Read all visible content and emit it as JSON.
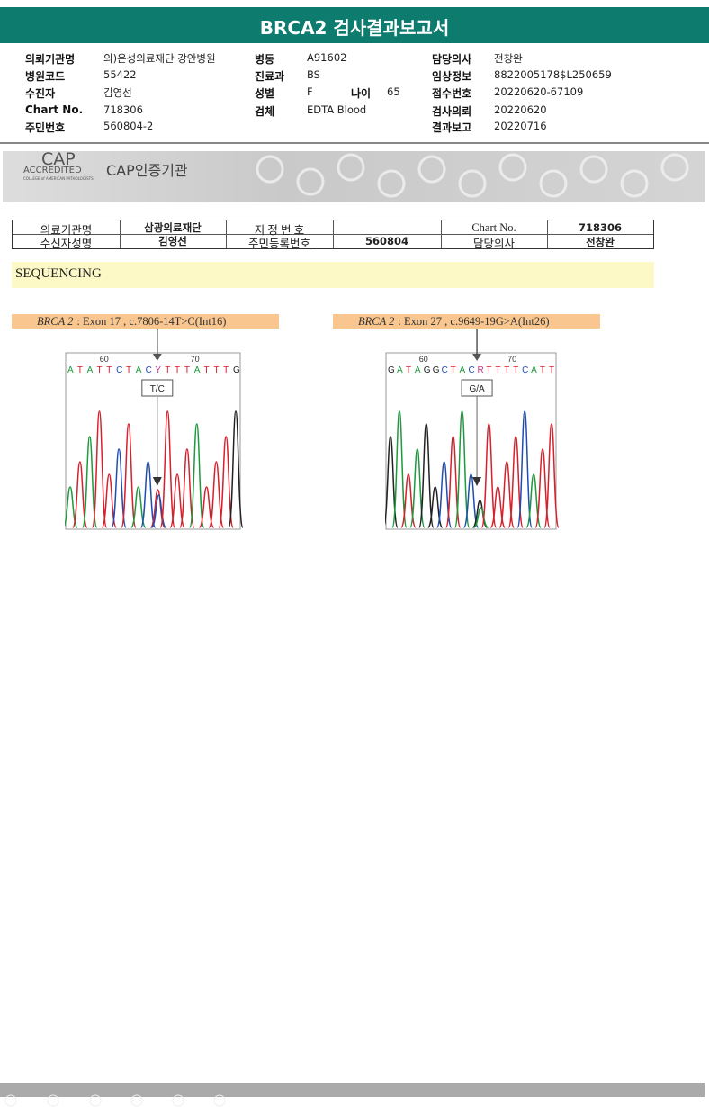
{
  "header": {
    "title": "BRCA2 검사결과보고서"
  },
  "patient_info": {
    "left": [
      {
        "label": "의뢰기관명",
        "value": "의)은성의료재단 강안병원"
      },
      {
        "label": "병원코드",
        "value": "55422"
      },
      {
        "label": "수진자",
        "value": "김영선"
      },
      {
        "label": "Chart No.",
        "value": "718306"
      },
      {
        "label": "주민번호",
        "value": "560804-2"
      }
    ],
    "middle": [
      {
        "label": "병동",
        "value": "A91602"
      },
      {
        "label": "진료과",
        "value": "BS"
      },
      {
        "label": "성별",
        "value": "F"
      },
      {
        "label": "검체",
        "value": "EDTA Blood"
      }
    ],
    "age": {
      "label": "나이",
      "value": "65"
    },
    "right": [
      {
        "label": "담당의사",
        "value": "전창완"
      },
      {
        "label": "임상정보",
        "value": "8822005178$L250659"
      },
      {
        "label": "접수번호",
        "value": "20220620-67109"
      },
      {
        "label": "검사의뢰",
        "value": "20220620"
      },
      {
        "label": "결과보고",
        "value": "20220716"
      }
    ]
  },
  "cap_banner": {
    "logo": "CAP",
    "accredited": "ACCREDITED",
    "college": "COLLEGE of AMERICAN PATHOLOGISTS",
    "title": "CAP인증기관"
  },
  "reference_table": {
    "row1": {
      "institution_label": "의료기관명",
      "institution": "삼광의료재단",
      "designation_label": "지 정 번 호",
      "chart_label": "Chart No.",
      "chart": "718306"
    },
    "row2": {
      "recipient_label": "수신자성명",
      "recipient": "김영선",
      "id_label": "주민등록번호",
      "id": "560804",
      "doctor_label": "담당의사",
      "doctor": "전창완"
    }
  },
  "section": {
    "title": "SEQUENCING"
  },
  "variants": [
    {
      "gene": "BRCA 2",
      "description": ": Exon 17 , c.7806-14T>C(Int16)",
      "sequence": "ATATTCTACYTTTATTTG",
      "position_labels": [
        60,
        70
      ],
      "call": "T/C"
    },
    {
      "gene": "BRCA 2",
      "description": ": Exon 27 , c.9649-19G>A(Int26)",
      "sequence": "GATAGGCTACRTTTTCATT",
      "position_labels": [
        60,
        70
      ],
      "call": "G/A"
    }
  ]
}
